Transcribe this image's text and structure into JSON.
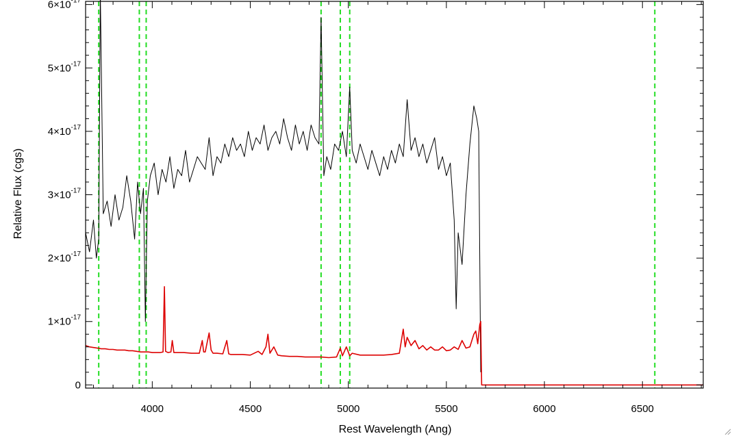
{
  "chart_data": {
    "type": "line",
    "xlabel": "Rest Wavelength (Ang)",
    "ylabel": "Relative Flux (cgs)",
    "xlim": [
      3660,
      6810
    ],
    "ylim": [
      -0.05,
      6.05
    ],
    "y_unit_exponent": "-17",
    "x_ticks": [
      {
        "value": 4000,
        "label": "4000"
      },
      {
        "value": 4500,
        "label": "4500"
      },
      {
        "value": 5000,
        "label": "5000"
      },
      {
        "value": 5500,
        "label": "5500"
      },
      {
        "value": 6000,
        "label": "6000"
      },
      {
        "value": 6500,
        "label": "6500"
      }
    ],
    "y_ticks": [
      {
        "value": 0,
        "mantissa": "0",
        "exponent": ""
      },
      {
        "value": 1,
        "mantissa": "1×10",
        "exponent": "-17"
      },
      {
        "value": 2,
        "mantissa": "2×10",
        "exponent": "-17"
      },
      {
        "value": 3,
        "mantissa": "3×10",
        "exponent": "-17"
      },
      {
        "value": 4,
        "mantissa": "4×10",
        "exponent": "-17"
      },
      {
        "value": 5,
        "mantissa": "5×10",
        "exponent": "-17"
      },
      {
        "value": 6,
        "mantissa": "6×10",
        "exponent": "-17"
      }
    ],
    "reference_lines": {
      "color": "#22dd22",
      "style": "dashed",
      "x": [
        3727,
        3934,
        3969,
        4861,
        4959,
        5007,
        6563
      ]
    },
    "series": [
      {
        "color": "#000000",
        "x": [
          3660,
          3680,
          3700,
          3715,
          3727,
          3735,
          3750,
          3770,
          3790,
          3810,
          3830,
          3850,
          3870,
          3890,
          3910,
          3925,
          3940,
          3955,
          3965,
          3975,
          3990,
          4010,
          4030,
          4050,
          4070,
          4090,
          4110,
          4130,
          4150,
          4170,
          4190,
          4210,
          4230,
          4250,
          4270,
          4290,
          4310,
          4330,
          4350,
          4370,
          4390,
          4410,
          4430,
          4450,
          4470,
          4490,
          4510,
          4530,
          4550,
          4570,
          4590,
          4610,
          4630,
          4650,
          4670,
          4690,
          4710,
          4730,
          4750,
          4770,
          4790,
          4810,
          4830,
          4850,
          4861,
          4875,
          4890,
          4910,
          4930,
          4950,
          4970,
          4990,
          5007,
          5020,
          5040,
          5060,
          5080,
          5100,
          5120,
          5140,
          5160,
          5180,
          5200,
          5220,
          5240,
          5260,
          5280,
          5300,
          5320,
          5340,
          5360,
          5380,
          5400,
          5420,
          5440,
          5460,
          5480,
          5500,
          5520,
          5540,
          5550,
          5560,
          5580,
          5600,
          5620,
          5640,
          5655,
          5665,
          5675
        ],
        "y": [
          2.4,
          2.1,
          2.6,
          2.0,
          2.3,
          6.2,
          2.7,
          2.9,
          2.5,
          3.0,
          2.6,
          2.8,
          3.3,
          2.9,
          2.3,
          3.2,
          2.7,
          3.1,
          1.0,
          2.9,
          3.3,
          3.5,
          3.0,
          3.4,
          3.2,
          3.6,
          3.1,
          3.4,
          3.3,
          3.7,
          3.2,
          3.4,
          3.6,
          3.5,
          3.4,
          3.9,
          3.3,
          3.6,
          3.5,
          3.8,
          3.6,
          3.9,
          3.7,
          3.8,
          3.6,
          4.0,
          3.7,
          3.9,
          3.8,
          4.1,
          3.7,
          3.9,
          4.0,
          3.8,
          4.2,
          3.9,
          3.7,
          4.1,
          3.8,
          4.0,
          3.7,
          4.1,
          3.9,
          3.8,
          5.8,
          3.3,
          3.6,
          3.4,
          3.8,
          3.7,
          4.0,
          3.6,
          4.7,
          3.7,
          3.5,
          3.8,
          3.6,
          3.4,
          3.7,
          3.5,
          3.3,
          3.6,
          3.4,
          3.7,
          3.5,
          3.8,
          3.6,
          4.5,
          3.7,
          3.9,
          3.6,
          3.8,
          3.5,
          3.7,
          3.9,
          3.4,
          3.6,
          3.3,
          3.5,
          2.6,
          1.2,
          2.4,
          1.9,
          3.0,
          3.8,
          4.4,
          4.2,
          4.0,
          0.2
        ]
      },
      {
        "color": "#dd0000",
        "x": [
          3660,
          3680,
          3700,
          3720,
          3740,
          3760,
          3780,
          3800,
          3820,
          3840,
          3860,
          3880,
          3900,
          3920,
          3940,
          3960,
          3980,
          4000,
          4020,
          4040,
          4055,
          4062,
          4068,
          4080,
          4095,
          4102,
          4110,
          4130,
          4160,
          4200,
          4240,
          4255,
          4262,
          4270,
          4290,
          4300,
          4310,
          4330,
          4360,
          4380,
          4390,
          4400,
          4430,
          4460,
          4500,
          4540,
          4560,
          4580,
          4590,
          4600,
          4620,
          4640,
          4660,
          4700,
          4740,
          4780,
          4820,
          4861,
          4900,
          4940,
          4959,
          4970,
          4990,
          5007,
          5020,
          5060,
          5100,
          5140,
          5180,
          5220,
          5260,
          5280,
          5290,
          5300,
          5320,
          5340,
          5360,
          5380,
          5400,
          5420,
          5440,
          5460,
          5480,
          5500,
          5520,
          5540,
          5560,
          5580,
          5600,
          5620,
          5640,
          5650,
          5660,
          5670,
          5675,
          5680,
          5700,
          5800,
          6000,
          6200,
          6400,
          6600,
          6810
        ],
        "y": [
          0.62,
          0.6,
          0.59,
          0.58,
          0.57,
          0.57,
          0.56,
          0.56,
          0.55,
          0.55,
          0.55,
          0.54,
          0.54,
          0.53,
          0.52,
          0.52,
          0.52,
          0.51,
          0.51,
          0.51,
          0.52,
          1.55,
          0.53,
          0.51,
          0.52,
          0.7,
          0.51,
          0.51,
          0.51,
          0.5,
          0.5,
          0.7,
          0.52,
          0.52,
          0.82,
          0.55,
          0.5,
          0.5,
          0.49,
          0.7,
          0.49,
          0.48,
          0.48,
          0.48,
          0.47,
          0.53,
          0.48,
          0.6,
          0.8,
          0.5,
          0.6,
          0.47,
          0.46,
          0.45,
          0.45,
          0.44,
          0.44,
          0.44,
          0.43,
          0.44,
          0.58,
          0.46,
          0.6,
          0.46,
          0.5,
          0.47,
          0.47,
          0.47,
          0.47,
          0.48,
          0.5,
          0.88,
          0.6,
          0.75,
          0.62,
          0.7,
          0.57,
          0.62,
          0.55,
          0.6,
          0.55,
          0.55,
          0.6,
          0.54,
          0.55,
          0.6,
          0.56,
          0.7,
          0.58,
          0.6,
          0.8,
          0.85,
          0.65,
          0.95,
          1.0,
          0.0,
          0.0,
          0.0,
          0.0,
          0.0,
          0.0,
          0.0,
          0.0
        ]
      }
    ]
  }
}
